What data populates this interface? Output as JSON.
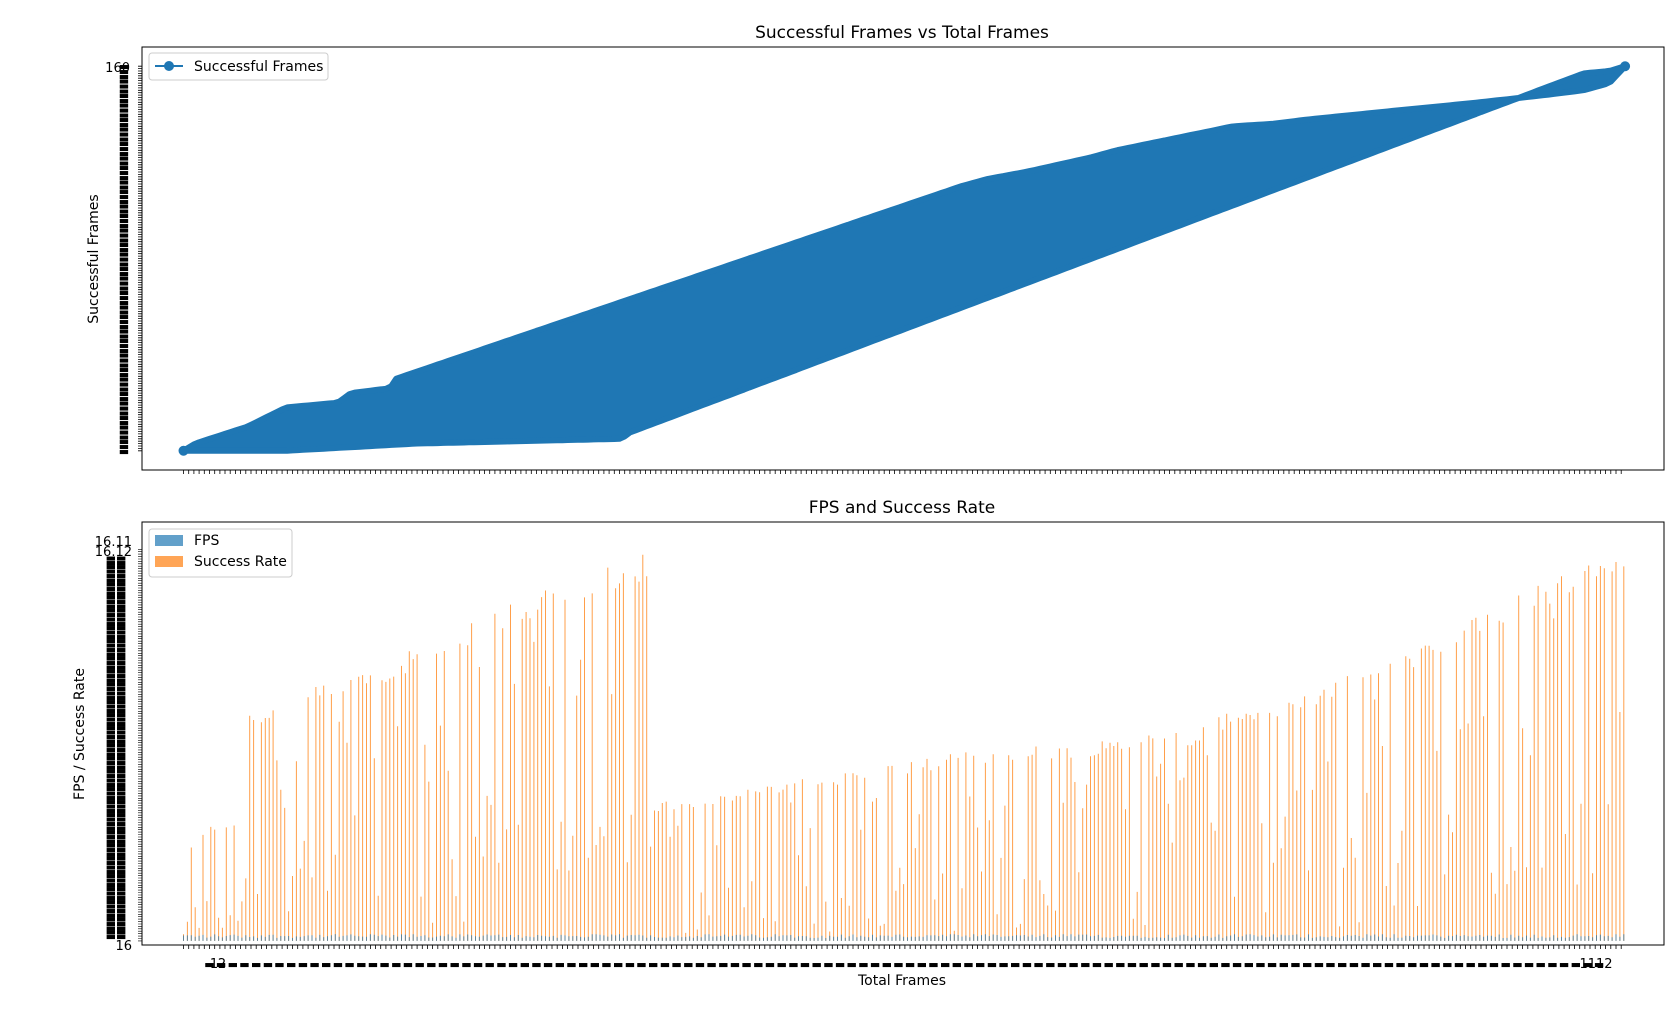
{
  "chart_data": [
    {
      "type": "line",
      "title": "Successful Frames vs Total Frames",
      "xlabel": "",
      "ylabel": "Successful Frames",
      "xlim": [
        -31,
        1142
      ],
      "ylim": [
        -8,
        168
      ],
      "x_range": [
        1,
        1112
      ],
      "x_tick_step": 4,
      "y_ticks_range": [
        0,
        160
      ],
      "y_tick_labels_shown": [
        "160"
      ],
      "legend": {
        "placement": "top-left",
        "entries": [
          {
            "name": "Successful Frames",
            "marker": "circle",
            "color": "#1f77b4"
          }
        ]
      },
      "series": [
        {
          "name": "Successful Frames",
          "color": "#1f77b4",
          "marker": "o",
          "lower_envelope": [
            [
              1,
              0
            ],
            [
              80,
              0
            ],
            [
              180,
              3
            ],
            [
              340,
              5
            ],
            [
              342,
              7
            ],
            [
              1080,
              157
            ],
            [
              1100,
              158
            ],
            [
              1112,
              160
            ]
          ],
          "upper_envelope": [
            [
              1,
              0
            ],
            [
              10,
              3
            ],
            [
              50,
              10
            ],
            [
              80,
              18
            ],
            [
              120,
              20
            ],
            [
              130,
              24
            ],
            [
              160,
              26
            ],
            [
              165,
              30
            ],
            [
              600,
              110
            ],
            [
              620,
              113
            ],
            [
              650,
              116
            ],
            [
              700,
              122
            ],
            [
              720,
              125
            ],
            [
              810,
              135
            ],
            [
              840,
              136
            ],
            [
              870,
              138
            ],
            [
              1000,
              145
            ],
            [
              1050,
              148
            ],
            [
              1080,
              150
            ],
            [
              1100,
              153
            ],
            [
              1112,
              160
            ]
          ]
        }
      ]
    },
    {
      "type": "bar",
      "title": "FPS and Success Rate",
      "xlabel": "Total Frames",
      "ylabel": "FPS / Success Rate",
      "xlim": [
        -31,
        1142
      ],
      "ylim": [
        -0.17,
        17.33
      ],
      "x_range": [
        1,
        1112
      ],
      "x_tick_labels_shown": [
        "1",
        "2",
        "1112"
      ],
      "y_tick_labels_shown": [
        "16.11",
        "16.12",
        "16"
      ],
      "legend": {
        "placement": "top-left",
        "entries": [
          {
            "name": "FPS",
            "color": "#1f77b4",
            "alpha": 0.7
          },
          {
            "name": "Success Rate",
            "color": "#ff7f0e",
            "alpha": 0.7
          }
        ]
      },
      "series": [
        {
          "name": "Success Rate",
          "color": "#ff7f0e",
          "peak_envelope": [
            [
              1,
              0.5
            ],
            [
              5,
              3.5
            ],
            [
              10,
              4.5
            ],
            [
              20,
              4.8
            ],
            [
              40,
              5
            ],
            [
              49,
              5.8
            ],
            [
              50,
              9.5
            ],
            [
              100,
              10.5
            ],
            [
              150,
              11.5
            ],
            [
              200,
              12.5
            ],
            [
              250,
              14
            ],
            [
              300,
              15.2
            ],
            [
              350,
              16.1
            ],
            [
              360,
              16.2
            ],
            [
              361,
              5.7
            ],
            [
              420,
              6.2
            ],
            [
              500,
              6.9
            ],
            [
              600,
              7.8
            ],
            [
              700,
              8.3
            ],
            [
              780,
              8.8
            ],
            [
              790,
              9.3
            ],
            [
              850,
              10
            ],
            [
              900,
              11
            ],
            [
              950,
              12.3
            ],
            [
              1000,
              13.5
            ],
            [
              1050,
              15
            ],
            [
              1100,
              16
            ],
            [
              1112,
              16.3
            ]
          ]
        },
        {
          "name": "FPS",
          "color": "#1f77b4",
          "typical_value": 0.2
        }
      ]
    }
  ]
}
